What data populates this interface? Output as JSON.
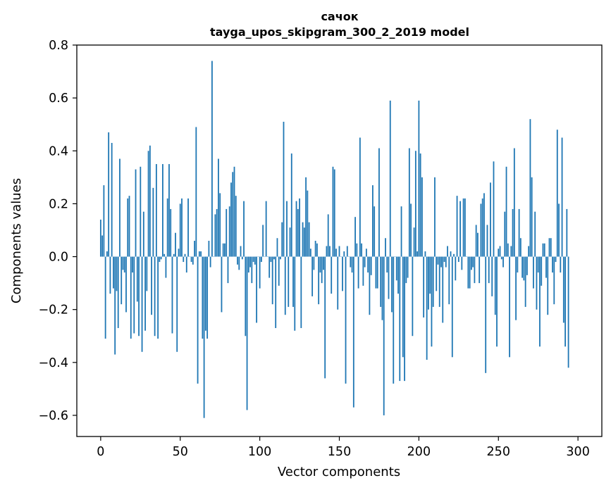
{
  "chart_data": {
    "type": "bar",
    "title": "сачок",
    "subtitle": "tayga_upos_skipgram_300_2_2019 model",
    "xlabel": "Vector components",
    "ylabel": "Components values",
    "xlim": [
      -15,
      315
    ],
    "ylim": [
      -0.68,
      0.8
    ],
    "xticks": [
      0,
      50,
      100,
      150,
      200,
      250,
      300
    ],
    "yticks": [
      -0.6,
      -0.4,
      -0.2,
      0.0,
      0.2,
      0.4,
      0.6,
      0.8
    ],
    "xtick_labels": [
      "0",
      "50",
      "100",
      "150",
      "200",
      "250",
      "300"
    ],
    "ytick_labels": [
      "−0.6",
      "−0.4",
      "−0.2",
      "0.0",
      "0.2",
      "0.4",
      "0.6",
      "0.8"
    ],
    "bar_color": "#1f77b4",
    "values": [
      0.14,
      0.08,
      0.27,
      -0.31,
      0.02,
      0.47,
      -0.14,
      0.43,
      -0.12,
      -0.37,
      -0.13,
      -0.27,
      0.37,
      -0.18,
      -0.05,
      -0.06,
      -0.21,
      0.22,
      0.23,
      -0.31,
      -0.06,
      -0.29,
      0.33,
      -0.17,
      -0.3,
      0.34,
      -0.36,
      0.17,
      -0.28,
      -0.13,
      0.4,
      0.42,
      -0.22,
      0.26,
      -0.3,
      0.35,
      -0.31,
      -0.02,
      -0.01,
      0.35,
      0.01,
      -0.08,
      0.22,
      0.35,
      0.18,
      -0.29,
      0.01,
      0.09,
      -0.36,
      0.03,
      0.2,
      0.22,
      -0.02,
      0.01,
      -0.06,
      0.22,
      0.0,
      -0.02,
      -0.03,
      0.06,
      0.49,
      -0.48,
      0.02,
      0.02,
      -0.31,
      -0.61,
      -0.28,
      -0.31,
      0.06,
      -0.04,
      0.74,
      0.0,
      0.16,
      0.18,
      0.37,
      0.24,
      -0.21,
      0.05,
      0.05,
      0.18,
      -0.1,
      0.19,
      0.28,
      0.32,
      0.34,
      0.23,
      -0.03,
      -0.05,
      0.04,
      -0.01,
      0.21,
      -0.3,
      -0.58,
      -0.06,
      -0.04,
      -0.1,
      -0.02,
      -0.03,
      -0.25,
      0.0,
      -0.12,
      -0.02,
      0.12,
      0.0,
      0.21,
      0.0,
      -0.08,
      -0.02,
      -0.18,
      -0.01,
      -0.27,
      0.07,
      -0.11,
      -0.01,
      0.13,
      0.51,
      -0.22,
      0.21,
      -0.19,
      0.11,
      0.39,
      -0.19,
      -0.28,
      0.21,
      0.18,
      0.22,
      -0.27,
      0.13,
      0.11,
      0.3,
      0.25,
      0.13,
      0.03,
      -0.15,
      -0.05,
      0.06,
      0.05,
      -0.18,
      -0.06,
      -0.1,
      -0.05,
      -0.46,
      0.04,
      0.16,
      0.04,
      -0.14,
      0.34,
      0.33,
      0.03,
      -0.2,
      0.04,
      0.0,
      -0.13,
      0.02,
      -0.48,
      0.04,
      0.0,
      -0.04,
      -0.06,
      -0.57,
      0.15,
      0.05,
      -0.12,
      0.45,
      0.05,
      -0.11,
      -0.04,
      0.03,
      -0.06,
      -0.22,
      -0.07,
      0.27,
      0.19,
      -0.12,
      -0.12,
      0.41,
      -0.19,
      -0.24,
      -0.6,
      0.07,
      -0.06,
      -0.16,
      0.59,
      -0.21,
      -0.48,
      0.0,
      -0.09,
      -0.14,
      -0.47,
      0.19,
      -0.38,
      -0.47,
      -0.1,
      -0.08,
      0.41,
      0.2,
      -0.3,
      0.11,
      0.4,
      0.02,
      0.59,
      0.39,
      0.3,
      -0.23,
      0.02,
      -0.39,
      -0.2,
      -0.14,
      -0.34,
      -0.19,
      0.3,
      -0.13,
      -0.03,
      -0.19,
      -0.04,
      -0.25,
      -0.02,
      -0.04,
      0.04,
      -0.18,
      0.02,
      -0.38,
      0.01,
      -0.09,
      0.23,
      -0.02,
      0.21,
      -0.05,
      0.22,
      0.22,
      0.0,
      -0.12,
      -0.12,
      -0.05,
      -0.04,
      -0.1,
      0.12,
      0.09,
      -0.1,
      0.2,
      0.22,
      0.24,
      -0.44,
      0.12,
      -0.1,
      0.28,
      -0.15,
      0.36,
      -0.22,
      -0.34,
      0.03,
      0.04,
      -0.01,
      -0.04,
      0.17,
      0.34,
      0.05,
      -0.38,
      0.04,
      0.18,
      0.41,
      -0.24,
      -0.06,
      0.18,
      0.07,
      -0.08,
      -0.09,
      -0.19,
      -0.07,
      0.04,
      0.52,
      0.3,
      -0.12,
      0.17,
      -0.2,
      -0.06,
      -0.34,
      -0.11,
      0.05,
      0.05,
      -0.08,
      -0.22,
      0.07,
      0.07,
      -0.06,
      -0.18,
      -0.02,
      0.48,
      0.2,
      -0.06,
      0.45,
      -0.25,
      -0.34,
      0.18,
      -0.42
    ],
    "grid": false,
    "legend": "none"
  }
}
